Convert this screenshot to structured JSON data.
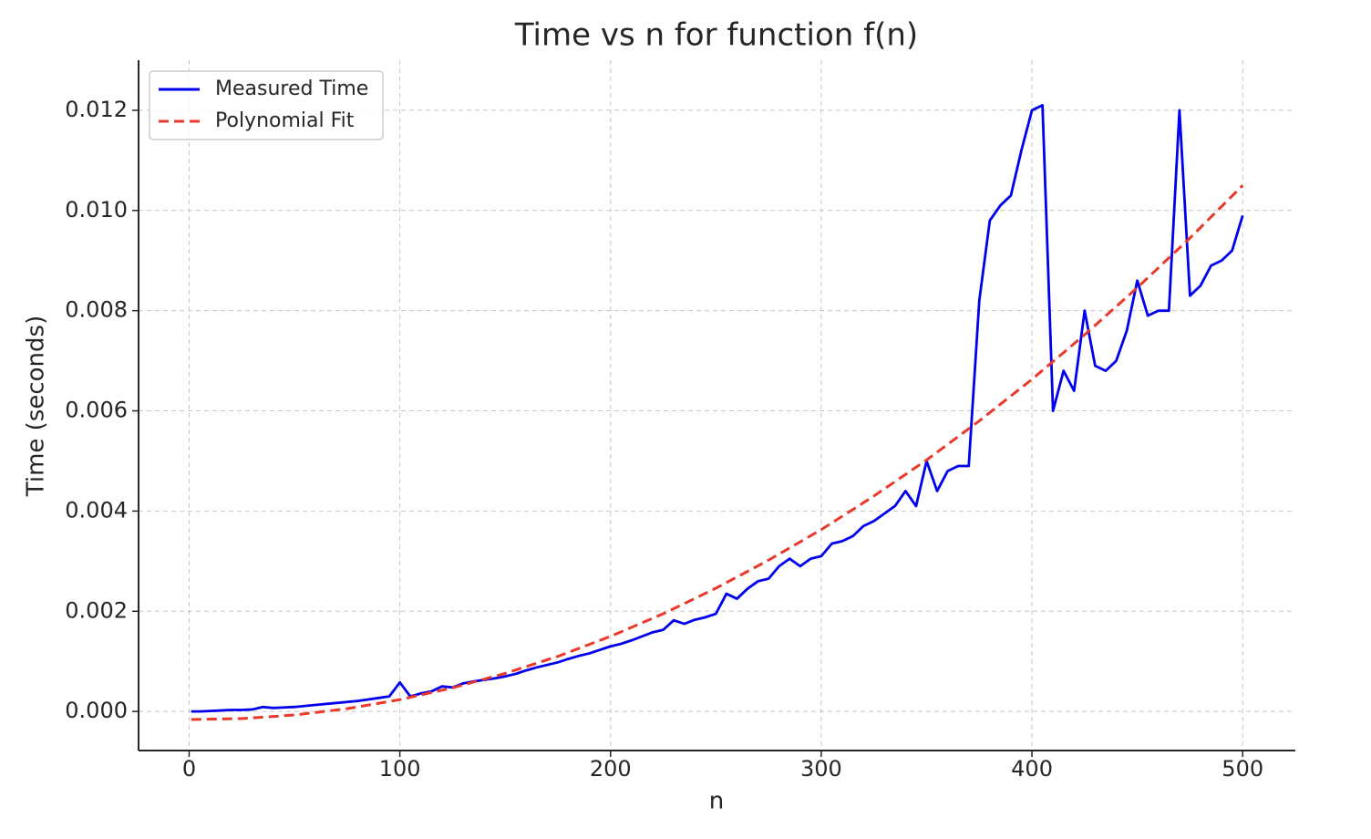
{
  "chart_data": {
    "type": "line",
    "title": "Time vs n for function f(n)",
    "x_label": "n",
    "y_label": "Time (seconds)",
    "xlim": [
      -24,
      525
    ],
    "ylim": [
      -0.00078,
      0.013
    ],
    "xticks": [
      0,
      100,
      200,
      300,
      400,
      500
    ],
    "yticks": [
      {
        "value": 0,
        "label": "0.000"
      },
      0.002,
      0.004,
      0.006,
      0.008,
      {
        "value": 0.01,
        "label": "0.010"
      },
      0.012
    ],
    "grid": true,
    "legend": "upper left",
    "series": [
      {
        "name": "Measured Time",
        "color": "#0000ee",
        "linestyle": "solid",
        "x": [
          1,
          5,
          10,
          15,
          20,
          25,
          30,
          35,
          40,
          45,
          50,
          55,
          60,
          65,
          70,
          75,
          80,
          85,
          90,
          95,
          100,
          105,
          110,
          115,
          120,
          125,
          130,
          135,
          140,
          145,
          150,
          155,
          160,
          165,
          170,
          175,
          180,
          185,
          190,
          195,
          200,
          205,
          210,
          215,
          220,
          225,
          230,
          235,
          240,
          245,
          250,
          255,
          260,
          265,
          270,
          275,
          280,
          285,
          290,
          295,
          300,
          305,
          310,
          315,
          320,
          325,
          330,
          335,
          340,
          345,
          350,
          355,
          360,
          365,
          370,
          375,
          380,
          385,
          390,
          395,
          400,
          405,
          410,
          415,
          420,
          425,
          430,
          435,
          440,
          445,
          450,
          455,
          460,
          465,
          470,
          475,
          480,
          485,
          490,
          495,
          500
        ],
        "values": [
          0.0,
          0.0,
          1e-05,
          2e-05,
          3e-05,
          3e-05,
          4e-05,
          9e-05,
          7e-05,
          8e-05,
          9e-05,
          0.00011,
          0.00013,
          0.00015,
          0.00017,
          0.00019,
          0.00021,
          0.00024,
          0.00027,
          0.0003,
          0.00058,
          0.0003,
          0.00036,
          0.0004,
          0.0005,
          0.00048,
          0.00056,
          0.0006,
          0.00063,
          0.00066,
          0.0007,
          0.00075,
          0.00082,
          0.00088,
          0.00093,
          0.00098,
          0.00105,
          0.00111,
          0.00116,
          0.00123,
          0.0013,
          0.00135,
          0.00142,
          0.0015,
          0.00158,
          0.00163,
          0.00182,
          0.00175,
          0.00183,
          0.00188,
          0.00195,
          0.00235,
          0.00225,
          0.00245,
          0.0026,
          0.00265,
          0.0029,
          0.00305,
          0.0029,
          0.00305,
          0.0031,
          0.00335,
          0.0034,
          0.0035,
          0.0037,
          0.0038,
          0.00395,
          0.0041,
          0.0044,
          0.0041,
          0.005,
          0.0044,
          0.0048,
          0.0049,
          0.0049,
          0.0082,
          0.0098,
          0.0101,
          0.0103,
          0.0112,
          0.012,
          0.0121,
          0.006,
          0.0068,
          0.0064,
          0.008,
          0.0069,
          0.0068,
          0.007,
          0.0076,
          0.0086,
          0.0079,
          0.008,
          0.008,
          0.012,
          0.0083,
          0.0085,
          0.0089,
          0.009,
          0.0092,
          0.0099
        ]
      },
      {
        "name": "Polynomial Fit",
        "color": "#e8392b",
        "linestyle": "dashed",
        "x": [
          1,
          25,
          50,
          75,
          100,
          125,
          150,
          175,
          200,
          225,
          250,
          275,
          300,
          325,
          350,
          375,
          400,
          425,
          450,
          475,
          500
        ],
        "values": [
          -0.00016,
          -0.000142,
          -7.05e-05,
          5.56e-05,
          0.000236,
          0.000471,
          0.00076,
          0.0011,
          0.0015,
          0.00195,
          0.00246,
          0.00302,
          0.00363,
          0.0043,
          0.00502,
          0.0058,
          0.00663,
          0.00752,
          0.00846,
          0.00945,
          0.0105
        ]
      }
    ]
  }
}
